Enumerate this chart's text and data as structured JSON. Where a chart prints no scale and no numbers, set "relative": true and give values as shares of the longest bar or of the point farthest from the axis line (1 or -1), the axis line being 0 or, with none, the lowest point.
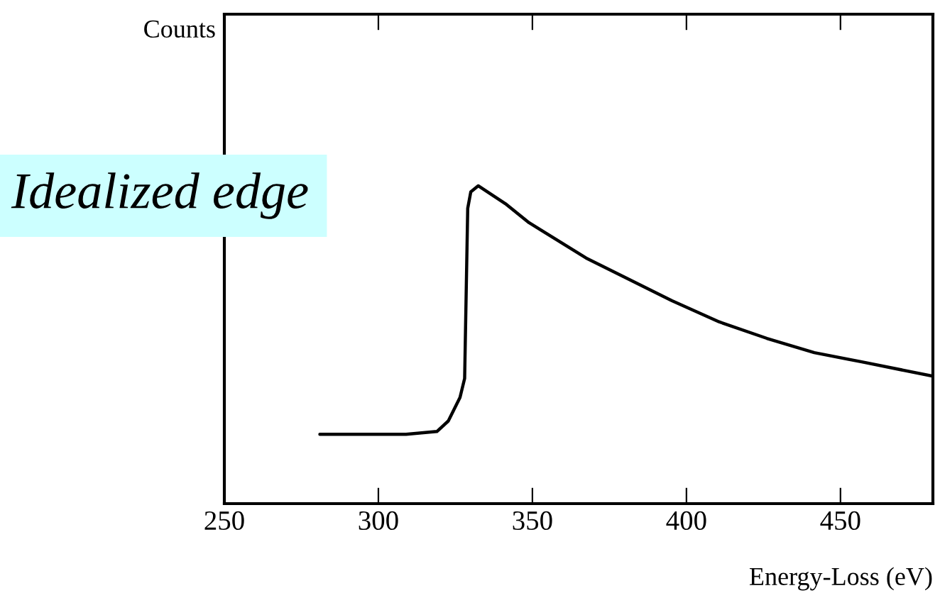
{
  "chart_data": {
    "type": "line",
    "relative": true,
    "xlabel": "Energy-Loss (eV)",
    "annotations": [
      "Counts",
      "Idealized edge"
    ],
    "xlim": [
      250,
      480
    ],
    "xticks": [
      250,
      300,
      350,
      400,
      450
    ],
    "tick_labels": "x",
    "grid": false,
    "legend": false,
    "series": [
      {
        "color": "#000000",
        "x": [
          281,
          309,
          319,
          322.7,
          326.5,
          328,
          329,
          330,
          332.4,
          341.2,
          348.9,
          367.4,
          379.8,
          395.2,
          410.6,
          426.1,
          441.5,
          456.9,
          480
        ],
        "values": [
          0.218,
          0.218,
          0.227,
          0.26,
          0.334,
          0.394,
          0.929,
          0.981,
          1.0,
          0.944,
          0.884,
          0.773,
          0.713,
          0.639,
          0.572,
          0.52,
          0.475,
          0.446,
          0.401
        ]
      }
    ]
  }
}
